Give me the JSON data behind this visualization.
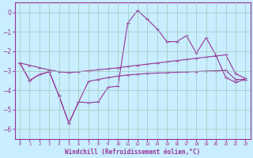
{
  "xlabel": "Windchill (Refroidissement éolien,°C)",
  "x": [
    0,
    1,
    2,
    3,
    4,
    5,
    6,
    7,
    8,
    9,
    10,
    11,
    12,
    13,
    14,
    15,
    16,
    17,
    18,
    19,
    20,
    21,
    22,
    23
  ],
  "y_spiky": [
    -2.6,
    -3.5,
    -3.2,
    -3.05,
    -4.3,
    -5.7,
    -4.6,
    -4.65,
    -4.6,
    -3.85,
    -3.8,
    -0.55,
    0.1,
    -0.35,
    -0.85,
    -1.5,
    -1.5,
    -1.2,
    -2.1,
    -1.3,
    -2.2,
    -3.35,
    -3.6,
    -3.45
  ],
  "y_diag": [
    -2.6,
    -2.72,
    -2.84,
    -2.96,
    -3.05,
    -3.1,
    -3.05,
    -3.0,
    -2.95,
    -2.9,
    -2.85,
    -2.78,
    -2.72,
    -2.66,
    -2.6,
    -2.54,
    -2.48,
    -2.42,
    -2.36,
    -2.3,
    -2.24,
    -2.18,
    -3.15,
    -3.4
  ],
  "y_flat": [
    -2.6,
    -3.5,
    -3.2,
    -3.05,
    -4.3,
    -5.7,
    -4.6,
    -3.55,
    -3.45,
    -3.35,
    -3.28,
    -3.22,
    -3.18,
    -3.14,
    -3.12,
    -3.1,
    -3.08,
    -3.06,
    -3.04,
    -3.02,
    -3.0,
    -2.98,
    -3.45,
    -3.45
  ],
  "line_color": "#993399",
  "bg_color": "#c8eeff",
  "grid_color": "#aaddcc",
  "ylim": [
    -6.5,
    0.5
  ],
  "yticks": [
    0,
    -1,
    -2,
    -3,
    -4,
    -5,
    -6
  ]
}
